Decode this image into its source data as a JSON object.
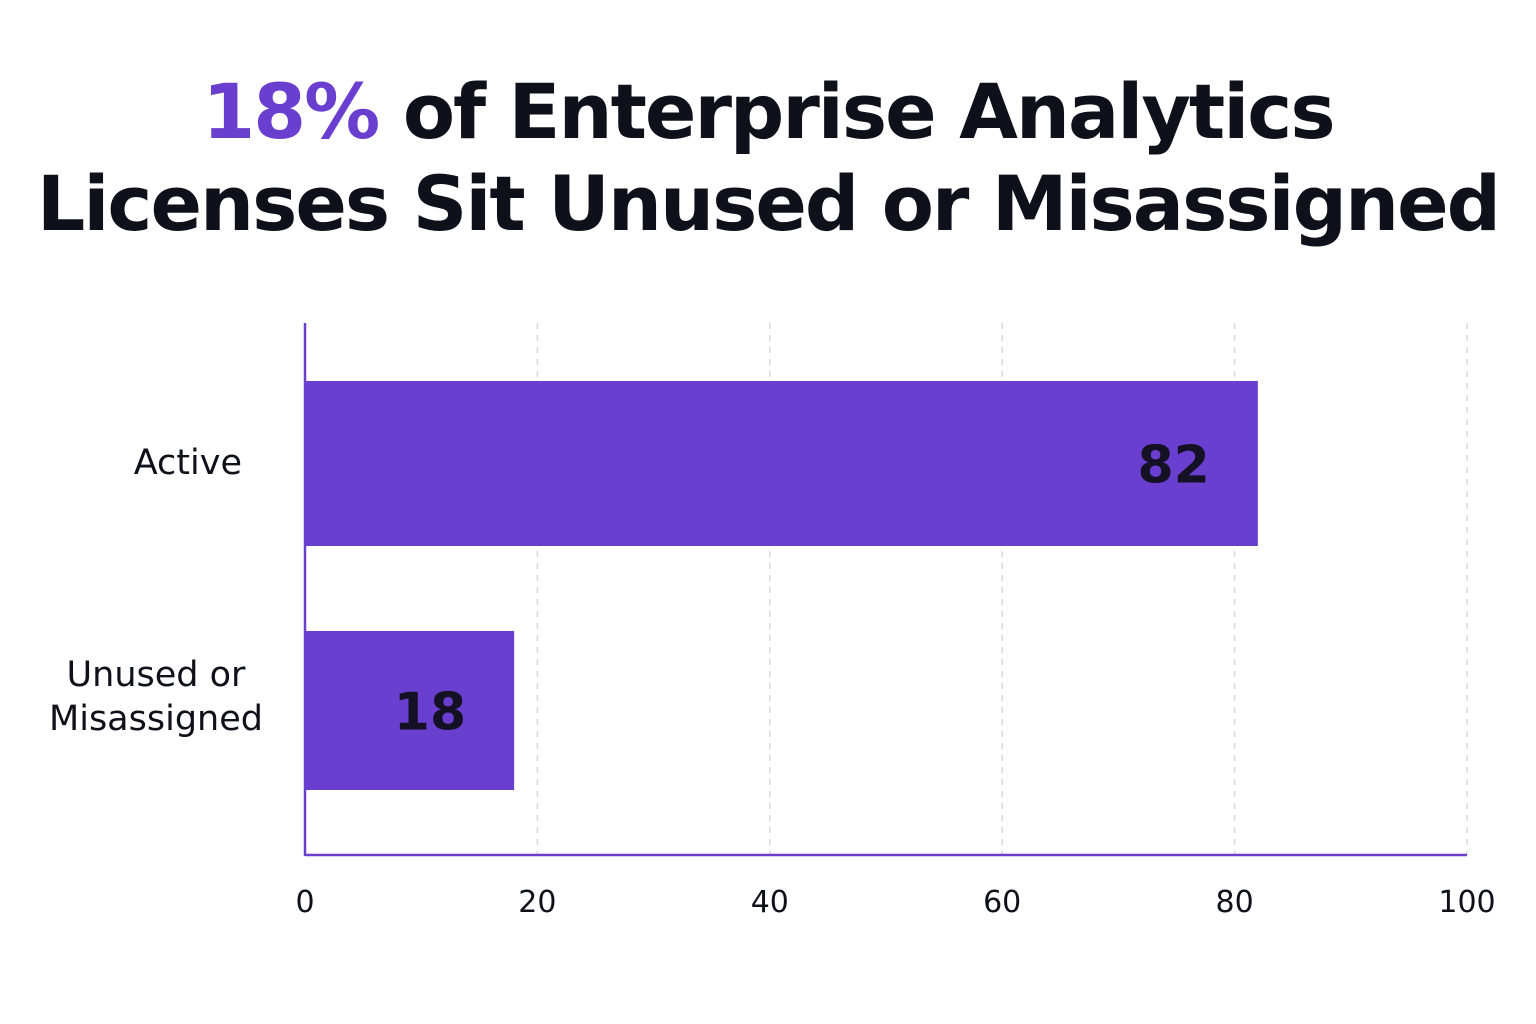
{
  "chart_data": {
    "type": "bar",
    "orientation": "horizontal",
    "title_highlight": "18%",
    "title_rest_line1": "of Enterprise Analytics",
    "title_line2": "Licenses Sit Unused or Misassigned",
    "categories": [
      "Active",
      "Unused or Misassigned"
    ],
    "category_label_lines": [
      [
        "Active"
      ],
      [
        "Unused or",
        "Misassigned"
      ]
    ],
    "values": [
      82,
      18
    ],
    "value_labels": [
      "82",
      "18"
    ],
    "xlabel": "",
    "ylabel": "",
    "xlim": [
      0,
      100
    ],
    "xticks": [
      0,
      20,
      40,
      60,
      80,
      100
    ],
    "xtick_labels": [
      "0",
      "20",
      "40",
      "60",
      "80",
      "100"
    ],
    "grid": "vertical dashed",
    "legend": "none",
    "colors": {
      "bar": "#6a3fd0",
      "accent_text": "#6a3fd0",
      "axis": "#6a3fd0",
      "grid": "#d9d9e0",
      "text": "#0f111a"
    }
  }
}
